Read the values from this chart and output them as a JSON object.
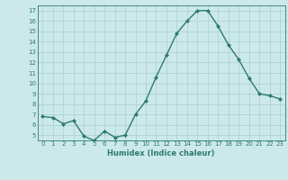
{
  "x": [
    0,
    1,
    2,
    3,
    4,
    5,
    6,
    7,
    8,
    9,
    10,
    11,
    12,
    13,
    14,
    15,
    16,
    17,
    18,
    19,
    20,
    21,
    22,
    23
  ],
  "y": [
    6.8,
    6.7,
    6.1,
    6.4,
    4.9,
    4.5,
    5.4,
    4.8,
    5.0,
    7.0,
    8.3,
    10.6,
    12.7,
    14.8,
    16.0,
    17.0,
    17.0,
    15.5,
    13.7,
    12.3,
    10.5,
    9.0,
    8.8,
    8.5
  ],
  "line_color": "#2e7a6e",
  "marker": "D",
  "marker_size": 2.0,
  "bg_color": "#cce9e9",
  "grid_color": "#aacfcf",
  "xlabel": "Humidex (Indice chaleur)",
  "ylim": [
    4.5,
    17.5
  ],
  "xlim": [
    -0.5,
    23.5
  ],
  "yticks": [
    5,
    6,
    7,
    8,
    9,
    10,
    11,
    12,
    13,
    14,
    15,
    16,
    17
  ],
  "xticks": [
    0,
    1,
    2,
    3,
    4,
    5,
    6,
    7,
    8,
    9,
    10,
    11,
    12,
    13,
    14,
    15,
    16,
    17,
    18,
    19,
    20,
    21,
    22,
    23
  ]
}
